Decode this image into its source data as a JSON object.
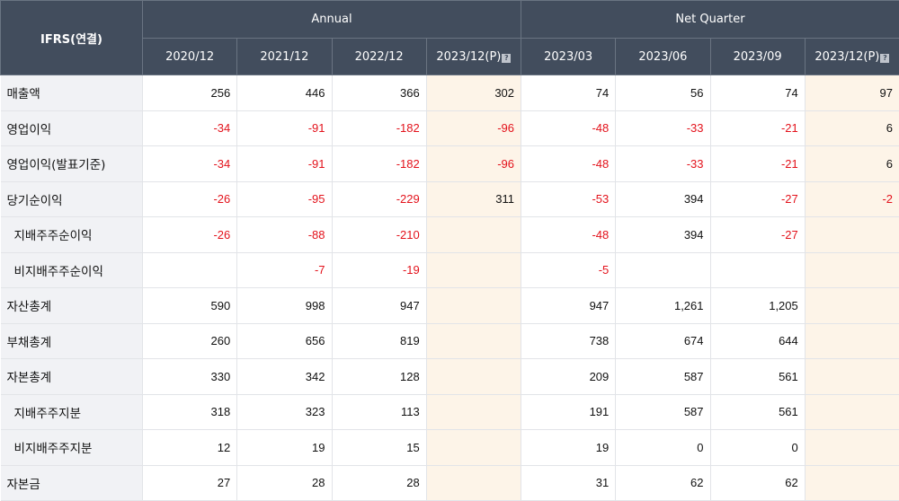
{
  "table": {
    "corner_label": "IFRS(연결)",
    "group_headers": [
      "Annual",
      "Net Quarter"
    ],
    "periods": [
      "2020/12",
      "2021/12",
      "2022/12",
      "2023/12(P)",
      "2023/03",
      "2023/06",
      "2023/09",
      "2023/12(P)"
    ],
    "provisional_icon": "question-mark-icon",
    "colors": {
      "header_bg": "#424d5d",
      "label_bg": "#f1f2f5",
      "provisional_bg": "#fdf4e8",
      "negative_text": "#e3121b"
    },
    "rows": [
      {
        "label": "매출액",
        "indent": false,
        "values": [
          "256",
          "446",
          "366",
          "302",
          "74",
          "56",
          "74",
          "97"
        ]
      },
      {
        "label": "영업이익",
        "indent": false,
        "values": [
          "-34",
          "-91",
          "-182",
          "-96",
          "-48",
          "-33",
          "-21",
          "6"
        ]
      },
      {
        "label": "영업이익(발표기준)",
        "indent": false,
        "values": [
          "-34",
          "-91",
          "-182",
          "-96",
          "-48",
          "-33",
          "-21",
          "6"
        ]
      },
      {
        "label": "당기순이익",
        "indent": false,
        "values": [
          "-26",
          "-95",
          "-229",
          "311",
          "-53",
          "394",
          "-27",
          "-2"
        ]
      },
      {
        "label": "지배주주순이익",
        "indent": true,
        "values": [
          "-26",
          "-88",
          "-210",
          "",
          "-48",
          "394",
          "-27",
          ""
        ]
      },
      {
        "label": "비지배주주순이익",
        "indent": true,
        "values": [
          "",
          "-7",
          "-19",
          "",
          "-5",
          "",
          "",
          ""
        ]
      },
      {
        "label": "자산총계",
        "indent": false,
        "values": [
          "590",
          "998",
          "947",
          "",
          "947",
          "1,261",
          "1,205",
          ""
        ]
      },
      {
        "label": "부채총계",
        "indent": false,
        "values": [
          "260",
          "656",
          "819",
          "",
          "738",
          "674",
          "644",
          ""
        ]
      },
      {
        "label": "자본총계",
        "indent": false,
        "values": [
          "330",
          "342",
          "128",
          "",
          "209",
          "587",
          "561",
          ""
        ]
      },
      {
        "label": "지배주주지분",
        "indent": true,
        "values": [
          "318",
          "323",
          "113",
          "",
          "191",
          "587",
          "561",
          ""
        ]
      },
      {
        "label": "비지배주주지분",
        "indent": true,
        "values": [
          "12",
          "19",
          "15",
          "",
          "19",
          "0",
          "0",
          ""
        ]
      },
      {
        "label": "자본금",
        "indent": false,
        "values": [
          "27",
          "28",
          "28",
          "",
          "31",
          "62",
          "62",
          ""
        ]
      }
    ]
  }
}
